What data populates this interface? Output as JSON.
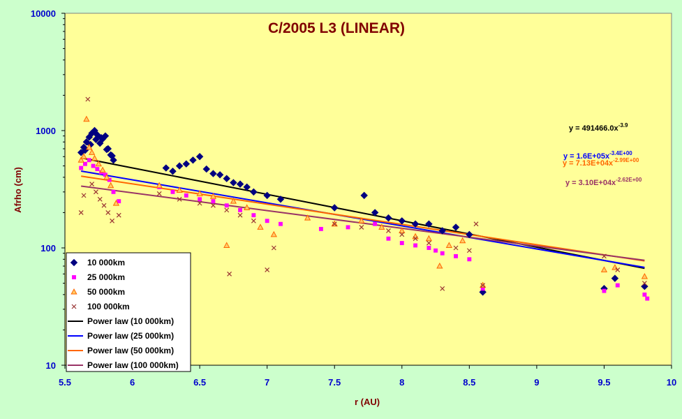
{
  "chart_data": {
    "type": "scatter",
    "title": "C/2005 L3 (LINEAR)",
    "xlabel": "r (AU)",
    "ylabel": "Afrho (cm)",
    "xlim": [
      5.5,
      10
    ],
    "ylim": [
      10,
      10000
    ],
    "yscale": "log",
    "grid": false,
    "plot_background": "#ffff99",
    "page_background": "#ccffcc",
    "x_ticks": [
      "5.5",
      "6",
      "6.5",
      "7",
      "7.5",
      "8",
      "8.5",
      "9",
      "9.5",
      "10"
    ],
    "y_ticks": [
      "10",
      "100",
      "1000",
      "10000"
    ],
    "legend_position": "bottom-left",
    "series": [
      {
        "name": "10 000km",
        "marker": "diamond",
        "color": "#000080",
        "scale": 1.45,
        "x": [
          5.62,
          5.64,
          5.66,
          5.68,
          5.7,
          5.72,
          5.74,
          5.76,
          5.78,
          5.8,
          5.82,
          5.84,
          5.86,
          5.65,
          5.69,
          5.73,
          5.77,
          5.81,
          5.85,
          6.25,
          6.3,
          6.35,
          6.4,
          6.45,
          6.5,
          6.55,
          6.6,
          6.65,
          6.7,
          6.75,
          6.8,
          6.85,
          6.9,
          7.0,
          7.1,
          7.5,
          7.72,
          7.8,
          7.9,
          8.0,
          8.1,
          8.2,
          8.3,
          8.4,
          8.5,
          8.6,
          9.5,
          9.58,
          9.8
        ],
        "y": [
          650,
          720,
          800,
          880,
          950,
          1000,
          920,
          780,
          850,
          900,
          700,
          620,
          560,
          680,
          760,
          840,
          870,
          690,
          610,
          480,
          450,
          500,
          520,
          560,
          600,
          470,
          430,
          420,
          390,
          360,
          350,
          330,
          300,
          280,
          260,
          220,
          280,
          200,
          180,
          170,
          160,
          160,
          140,
          150,
          130,
          42,
          45,
          55,
          47
        ]
      },
      {
        "name": "25 000km",
        "marker": "square",
        "color": "#ff00ff",
        "scale": 1.05,
        "x": [
          5.62,
          5.65,
          5.68,
          5.71,
          5.74,
          5.77,
          5.8,
          5.83,
          5.86,
          5.9,
          6.2,
          6.3,
          6.4,
          6.5,
          6.6,
          6.7,
          6.8,
          6.9,
          7.0,
          7.1,
          7.4,
          7.6,
          7.8,
          7.9,
          8.0,
          8.1,
          8.2,
          8.25,
          8.3,
          8.4,
          8.5,
          8.6,
          9.5,
          9.6,
          9.8,
          9.82
        ],
        "y": [
          480,
          520,
          560,
          500,
          470,
          440,
          420,
          380,
          300,
          250,
          330,
          300,
          280,
          260,
          250,
          230,
          210,
          190,
          170,
          160,
          145,
          150,
          160,
          120,
          110,
          105,
          100,
          95,
          90,
          85,
          80,
          45,
          43,
          48,
          40,
          37
        ]
      },
      {
        "name": "50 000km",
        "marker": "triangle",
        "color": "#ff6600",
        "scale": 1.0,
        "x": [
          5.62,
          5.64,
          5.66,
          5.68,
          5.7,
          5.72,
          5.75,
          5.78,
          5.81,
          5.84,
          5.88,
          6.2,
          6.35,
          6.5,
          6.6,
          6.7,
          6.75,
          6.85,
          6.95,
          7.05,
          7.3,
          7.5,
          7.7,
          7.85,
          8.0,
          8.1,
          8.2,
          8.28,
          8.35,
          8.45,
          8.6,
          9.5,
          9.58,
          9.8
        ],
        "y": [
          560,
          600,
          1250,
          720,
          650,
          580,
          520,
          460,
          400,
          340,
          240,
          340,
          310,
          290,
          275,
          105,
          250,
          220,
          150,
          130,
          180,
          160,
          170,
          150,
          140,
          125,
          120,
          70,
          105,
          115,
          48,
          65,
          68,
          57
        ]
      },
      {
        "name": "100 000km",
        "marker": "x",
        "color": "#993333",
        "scale": 1.0,
        "x": [
          5.62,
          5.64,
          5.67,
          5.7,
          5.73,
          5.76,
          5.79,
          5.82,
          5.85,
          5.9,
          6.2,
          6.35,
          6.5,
          6.6,
          6.7,
          6.72,
          6.8,
          6.9,
          7.0,
          7.05,
          7.5,
          7.7,
          7.9,
          8.0,
          8.1,
          8.2,
          8.3,
          8.4,
          8.5,
          8.55,
          8.6,
          9.5,
          9.6,
          9.8
        ],
        "y": [
          200,
          280,
          1850,
          350,
          300,
          260,
          230,
          200,
          170,
          190,
          290,
          260,
          240,
          230,
          210,
          60,
          190,
          170,
          65,
          100,
          160,
          150,
          140,
          130,
          120,
          110,
          45,
          100,
          95,
          160,
          48,
          85,
          65,
          50
        ]
      }
    ],
    "fits": [
      {
        "name": "Power law (10 000km)",
        "color": "#000000",
        "a": 491466,
        "b": -3.9,
        "equation_prefix": "y = 491466.0x",
        "exponent": "-3.9"
      },
      {
        "name": "Power law (25 000km)",
        "color": "#0000ff",
        "a": 160000,
        "b": -3.4,
        "equation_prefix": "y = 1.6E+05x",
        "exponent": "-3.4E+00"
      },
      {
        "name": "Power law (50 000km)",
        "color": "#ff6600",
        "a": 71300,
        "b": -2.99,
        "equation_prefix": "y = 7.13E+04x",
        "exponent": "-2.99E+00"
      },
      {
        "name": "Power law (100 000km)",
        "color": "#993366",
        "a": 31000,
        "b": -2.62,
        "equation_prefix": "y = 3.10E+04x",
        "exponent": "-2.62E+00"
      }
    ]
  }
}
